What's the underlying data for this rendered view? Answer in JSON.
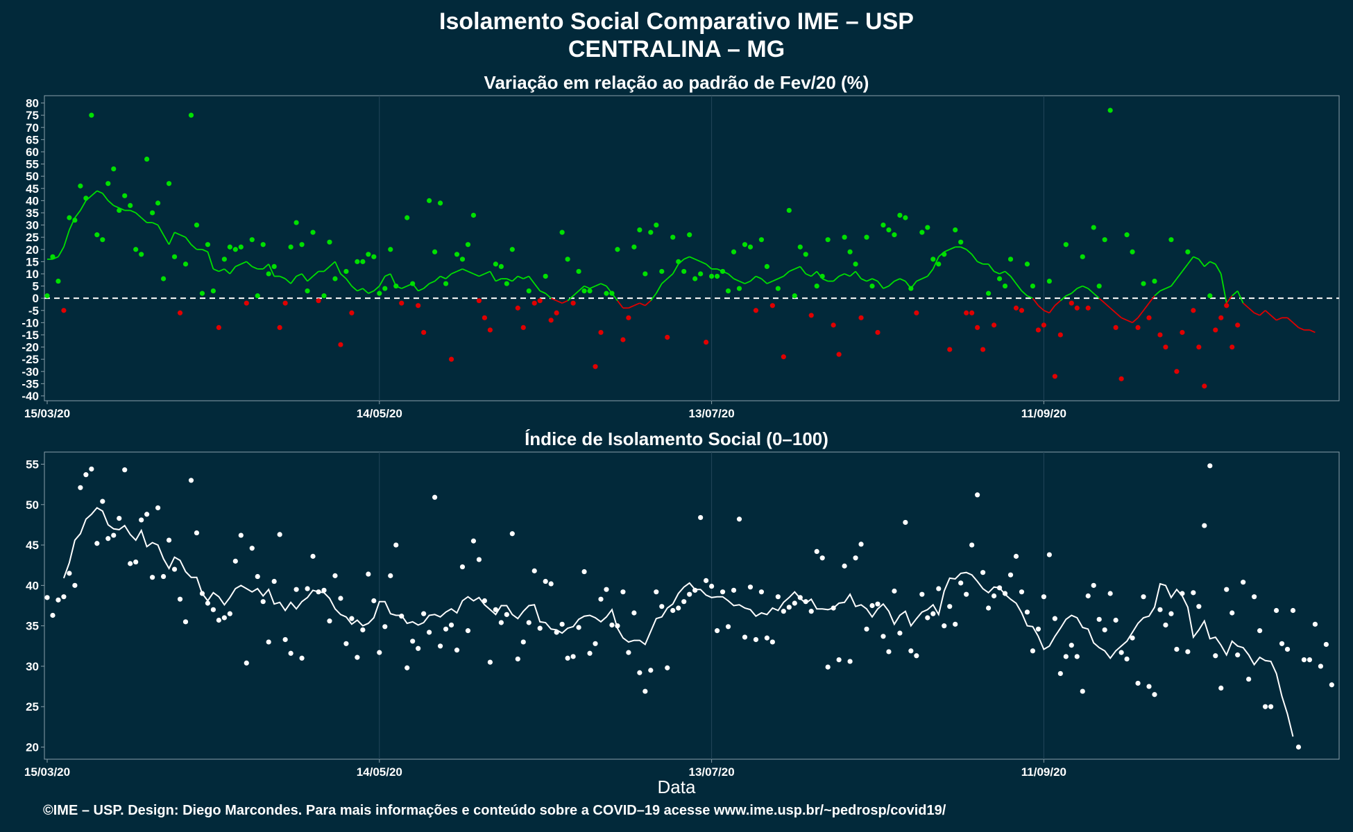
{
  "title": "Isolamento Social Comparativo IME – USP",
  "subtitle": "CENTRALINA – MG",
  "footer": "©IME – USP. Design: Diego Marcondes. Para mais informações e conteúdo sobre a COVID–19 acesse www.ime.usp.br/~pedrosp/covid19/",
  "colors": {
    "background": "#02293a",
    "above": "#00e000",
    "below": "#e00000",
    "index": "#ffffff",
    "grid": "#23465a"
  },
  "chart_data": [
    {
      "type": "scatter",
      "title": "Variação em relação ao padrão de Fev/20 (%)",
      "xlabel": "",
      "ylabel": "",
      "x_start": "15/03/20",
      "x_tick_labels": [
        "15/03/20",
        "14/05/20",
        "13/07/20",
        "11/09/20"
      ],
      "x_tick_days": [
        0,
        60,
        120,
        180
      ],
      "ylim": [
        -42,
        83
      ],
      "y_ticks": [
        80,
        75,
        70,
        65,
        60,
        55,
        50,
        45,
        40,
        35,
        30,
        25,
        20,
        15,
        10,
        5,
        0,
        -5,
        -10,
        -15,
        -20,
        -25,
        -30,
        -35,
        -40
      ],
      "reference_line": 0,
      "grid": true,
      "series": [
        {
          "name": "",
          "values": [
            1,
            17,
            7,
            -5,
            33,
            32,
            46,
            41,
            75,
            26,
            24,
            47,
            53,
            36,
            42,
            38,
            20,
            18,
            57,
            35,
            39,
            8,
            47,
            17,
            -6,
            14,
            75,
            30,
            2,
            22,
            3,
            -12,
            16,
            21,
            20,
            21,
            -2,
            24,
            1,
            22,
            10,
            13,
            -12,
            -2,
            21,
            31,
            22,
            3,
            27,
            -1,
            1,
            23,
            8,
            -19,
            11,
            -6,
            15,
            15,
            18,
            17,
            2,
            4,
            20,
            5,
            -2,
            33,
            6,
            -3,
            -14,
            40,
            19,
            39,
            6,
            -25,
            18,
            16,
            22,
            34,
            -1,
            -8,
            -13,
            14,
            13,
            6,
            20,
            -4,
            -12,
            3,
            -2,
            -1,
            9,
            -9,
            -6,
            27,
            16,
            -2,
            11,
            3,
            3,
            -28,
            -14,
            2,
            2,
            20,
            -17,
            -8,
            21,
            28,
            10,
            27,
            30,
            11,
            -16,
            25,
            15,
            11,
            26,
            8,
            10,
            -18,
            9,
            9,
            11,
            3,
            19,
            4,
            22,
            21,
            -5,
            24,
            13,
            -3,
            4,
            -24,
            36,
            1,
            21,
            18,
            -7,
            5,
            9,
            24,
            -11,
            -23,
            25,
            19,
            14,
            -8,
            25,
            5,
            -14,
            30,
            28,
            26,
            34,
            33,
            4,
            -6,
            27,
            29,
            16,
            14,
            18,
            -21,
            28,
            23,
            -6,
            -6,
            -12,
            -21,
            2,
            -11,
            8,
            5,
            16,
            -4,
            -5,
            14,
            5,
            -13,
            -11,
            7,
            -32,
            -15,
            22,
            -2,
            -4,
            17,
            -4,
            29,
            5,
            24,
            77,
            -12,
            -33,
            26,
            19,
            -12,
            6,
            -8,
            7,
            -15,
            -20,
            24,
            -30,
            -14,
            19,
            -5,
            -20,
            -36,
            1,
            -13,
            -8,
            -3,
            -20,
            -11
          ]
        },
        {
          "name": "",
          "values": [
            16,
            16,
            17,
            21,
            28,
            33,
            36,
            40,
            42,
            44,
            43,
            40,
            38,
            37,
            36,
            36,
            35,
            33,
            31,
            31,
            30,
            26,
            22,
            27,
            26,
            25,
            22,
            20,
            20,
            19,
            12,
            11,
            12,
            10,
            13,
            14,
            15,
            13,
            12,
            12,
            14,
            9,
            9,
            8,
            6,
            9,
            10,
            7,
            9,
            11,
            11,
            13,
            15,
            10,
            8,
            5,
            3,
            4,
            2,
            3,
            5,
            9,
            10,
            5,
            4,
            5,
            6,
            3,
            4,
            6,
            7,
            9,
            8,
            10,
            11,
            12,
            11,
            10,
            9,
            10,
            11,
            7,
            8,
            8,
            7,
            9,
            8,
            9,
            6,
            3,
            2,
            0,
            -1,
            -2,
            -1,
            1,
            3,
            5,
            4,
            5,
            6,
            5,
            2,
            -1,
            -4,
            -4,
            -3,
            -2,
            -3,
            -1,
            2,
            6,
            8,
            10,
            14,
            16,
            17,
            16,
            15,
            14,
            12,
            12,
            11,
            10,
            8,
            7,
            6,
            7,
            9,
            8,
            6,
            7,
            8,
            9,
            11,
            12,
            13,
            10,
            9,
            11,
            8,
            7,
            7,
            9,
            10,
            9,
            11,
            8,
            7,
            8,
            7,
            4,
            5,
            7,
            8,
            7,
            4,
            7,
            8,
            9,
            12,
            17,
            19,
            20,
            21,
            21,
            20,
            18,
            15,
            14,
            14,
            11,
            10,
            11,
            9,
            6,
            3,
            1,
            0,
            -3,
            -5,
            -6,
            -3,
            -1,
            1,
            2,
            4,
            5,
            4,
            2,
            0,
            -2,
            -4,
            -6,
            -8,
            -9,
            -10,
            -8,
            -5,
            -2,
            1,
            3,
            4,
            5,
            8,
            11,
            14,
            17,
            16,
            13,
            15,
            14,
            10,
            -2,
            1,
            3,
            -2,
            -4,
            -6,
            -7,
            -5,
            -7,
            -9,
            -8,
            -8,
            -10,
            -12,
            -13,
            -13,
            -14
          ]
        }
      ]
    },
    {
      "type": "scatter",
      "title": "Índice de Isolamento Social (0–100)",
      "xlabel": "Data",
      "ylabel": "",
      "x_start": "15/03/20",
      "x_tick_labels": [
        "15/03/20",
        "14/05/20",
        "13/07/20",
        "11/09/20"
      ],
      "x_tick_days": [
        0,
        60,
        120,
        180
      ],
      "ylim": [
        18.5,
        56.5
      ],
      "y_ticks": [
        55,
        50,
        45,
        40,
        35,
        30,
        25,
        20
      ],
      "grid": true,
      "series": [
        {
          "name": "",
          "values": [
            38.5,
            36.3,
            38.2,
            38.6,
            41.5,
            40,
            52.1,
            53.7,
            54.4,
            45.2,
            50.4,
            45.8,
            46.2,
            48.3,
            54.3,
            42.7,
            42.9,
            48.1,
            48.8,
            41,
            49.6,
            41.1,
            45.6,
            42,
            38.3,
            35.5,
            53,
            46.5,
            39,
            37.8,
            37,
            35.7,
            36,
            36.5,
            43,
            46.2,
            30.4,
            44.6,
            41.1,
            38,
            33,
            40.5,
            46.3,
            33.3,
            31.6,
            39.5,
            31,
            39.6,
            43.6,
            39.2,
            39.4,
            35.6,
            41.2,
            38.4,
            32.8,
            35.9,
            31.1,
            34.5,
            41.4,
            38.1,
            31.7,
            34.9,
            41.2,
            45,
            36.2,
            29.8,
            33.1,
            32.2,
            36.5,
            34.2,
            50.9,
            32.5,
            34.6,
            35.1,
            32,
            42.3,
            34.4,
            45.5,
            43.2,
            38.1,
            30.5,
            37,
            35.4,
            36.4,
            46.4,
            30.9,
            33,
            35.4,
            41.8,
            34.7,
            40.5,
            40.2,
            34.2,
            35.2,
            31,
            31.2,
            34.8,
            41.7,
            31.6,
            32.8,
            38.3,
            39.5,
            35.1,
            35,
            39.2,
            31.7,
            36.6,
            29.2,
            26.9,
            29.5,
            39.2,
            37.4,
            29.8,
            36.9,
            37.2,
            38,
            38.9,
            39.4,
            48.4,
            40.6,
            39.9,
            34.4,
            39.2,
            34.9,
            39.4,
            48.2,
            33.6,
            39.8,
            33.3,
            39.2,
            33.5,
            33,
            38.6,
            36.8,
            37.3,
            37.8,
            38.5,
            38,
            36.8,
            44.2,
            43.4,
            29.9,
            37.2,
            30.8,
            42.4,
            30.6,
            43.4,
            45.1,
            34.6,
            37.5,
            37.7,
            33.7,
            31.8,
            39.3,
            34.1,
            47.8,
            31.9,
            31.3,
            38.9,
            36,
            36.5,
            39.6,
            35,
            37.4,
            35.2,
            40.3,
            38.9,
            45,
            51.2,
            41.6,
            37.2,
            38.7,
            39.7,
            39,
            41.3,
            43.6,
            39.2,
            36.7,
            31.9,
            34.6,
            38.6,
            43.8,
            35.9,
            29.1,
            31.2,
            32.6,
            31.2,
            26.9,
            38.7,
            40,
            35.8,
            34.5,
            39,
            35.7,
            31.7,
            30.9,
            33.5,
            27.9,
            38.6,
            27.5,
            26.5,
            37,
            35.1,
            36.5,
            32.1,
            39,
            31.8,
            39.1,
            37.4,
            47.4,
            54.8,
            31.3,
            27.3,
            39.5,
            36.6,
            31.4,
            40.4,
            28.4,
            38.6,
            34.4,
            25,
            25,
            36.9,
            32.8,
            32.1,
            36.9,
            20,
            30.8,
            30.8,
            35.2,
            30,
            32.7,
            27.7
          ]
        },
        {
          "name": "",
          "values": [
            null,
            null,
            null,
            40.9,
            42.8,
            45.6,
            46.4,
            48.2,
            48.8,
            49.6,
            49.2,
            47.5,
            47,
            46.9,
            47.4,
            46.3,
            45.6,
            46.8,
            44.8,
            45.3,
            45,
            43.3,
            42.1,
            43.5,
            43.1,
            41.7,
            41,
            41,
            39,
            38.1,
            39.1,
            38.6,
            37.6,
            38.5,
            39.6,
            40,
            39.6,
            39.2,
            39.6,
            38.7,
            39.5,
            37.7,
            37.9,
            36.9,
            37.9,
            37.1,
            38,
            38.5,
            39.4,
            39.2,
            39.1,
            38.4,
            37.1,
            36.4,
            36.1,
            35.2,
            35.7,
            35,
            35.3,
            36,
            38,
            38,
            36.5,
            36.3,
            36.3,
            35.3,
            35.5,
            35.1,
            35.4,
            36.3,
            36.4,
            36.1,
            36.7,
            37.1,
            36.6,
            38.1,
            38.6,
            38.1,
            38.5,
            37.6,
            37,
            36.4,
            37.5,
            37.5,
            36.4,
            35.9,
            36.8,
            37.5,
            37.6,
            35.5,
            35.4,
            34.6,
            34.5,
            34.1,
            34.7,
            34.9,
            35.8,
            36.2,
            36.3,
            36,
            35.5,
            36.1,
            37,
            34.7,
            33.5,
            33,
            33.2,
            33.2,
            32.7,
            34.3,
            35.9,
            36.1,
            37.2,
            37.7,
            39,
            39.8,
            40.3,
            39.5,
            39.5,
            38.8,
            38.5,
            38.6,
            38.6,
            38.1,
            37.5,
            37.6,
            37.2,
            37,
            36.2,
            36.6,
            36.4,
            37.2,
            36.9,
            37.9,
            38.5,
            39.2,
            38.4,
            37.8,
            38.3,
            37.1,
            37.1,
            37,
            37.2,
            37.8,
            37.9,
            38.9,
            37.4,
            37.6,
            37.1,
            36.1,
            37.1,
            37.7,
            36.8,
            35.2,
            36.3,
            36.8,
            35,
            35.9,
            36.7,
            37,
            37.6,
            36.4,
            39.3,
            40.9,
            40.8,
            41.5,
            41.6,
            41.3,
            40.5,
            39.6,
            39.1,
            39.8,
            39.7,
            38.9,
            38.3,
            37.8,
            36.6,
            35,
            34.9,
            33.7,
            32.1,
            32.5,
            33.7,
            34.7,
            35.8,
            36.3,
            36,
            34.8,
            34.6,
            32.9,
            32.3,
            31.9,
            31,
            31.9,
            32.5,
            33.1,
            34.2,
            35.3,
            36,
            36.2,
            37.3,
            40.2,
            40,
            38.5,
            39.5,
            38.7,
            37.3,
            33.6,
            34.5,
            35.6,
            33.4,
            33.6,
            32.6,
            31.4,
            33.1,
            32.5,
            32.3,
            31.4,
            30.2,
            31.1,
            30.7,
            30.6,
            29.1,
            26.3,
            24.1,
            21.3
          ]
        }
      ]
    }
  ]
}
